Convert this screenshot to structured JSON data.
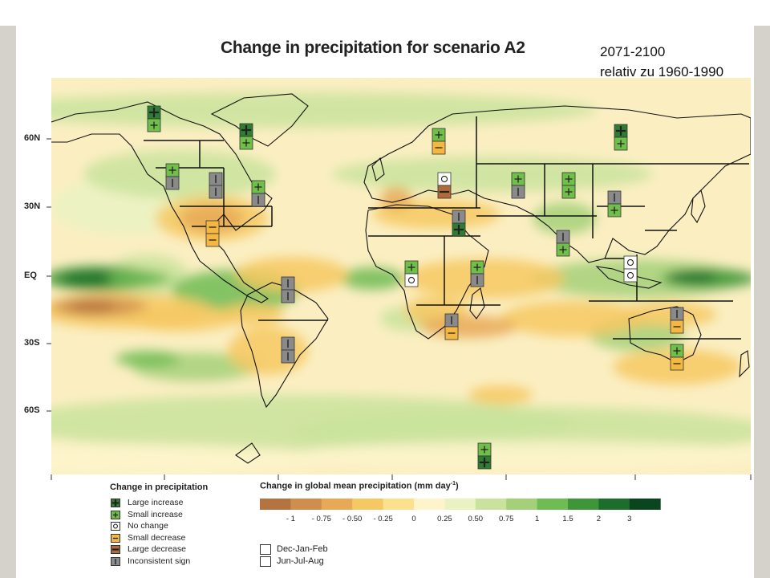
{
  "title": "Change in precipitation for scenario A2",
  "period": {
    "line1": "2071-2100",
    "line2": "relativ zu 1960-1990"
  },
  "latitude_labels": [
    "60N",
    "30N",
    "EQ",
    "30S",
    "60S"
  ],
  "legend_symbols": {
    "title": "Change in precipitation",
    "items": [
      {
        "label": "Large increase",
        "color": "#2f7d32",
        "glyph": "plus-large"
      },
      {
        "label": "Small increase",
        "color": "#6fbf4a",
        "glyph": "plus-small"
      },
      {
        "label": "No change",
        "color": "#ffffff",
        "glyph": "circle"
      },
      {
        "label": "Small decrease",
        "color": "#f3b742",
        "glyph": "minus-small"
      },
      {
        "label": "Large decrease",
        "color": "#b06a3b",
        "glyph": "minus-large"
      },
      {
        "label": "Inconsistent sign",
        "color": "#8a8a8a",
        "glyph": "bar"
      }
    ]
  },
  "colorbar": {
    "title": "Change in global mean precipitation (mm day",
    "title_exp": "-1",
    "title_end": ")",
    "tick_labels": [
      "- 1",
      "- 0.75",
      "- 0.50",
      "- 0.25",
      "0",
      "0.25",
      "0.50",
      "0.75",
      "1",
      "1.5",
      "2",
      "3"
    ],
    "colors": [
      "#b5733f",
      "#d08e4e",
      "#e8a957",
      "#f6c862",
      "#fbe08d",
      "#fdf4cb",
      "#eaf2c2",
      "#c9e39c",
      "#a3d078",
      "#6fbb54",
      "#3e9638",
      "#1c6e2a",
      "#0b4520"
    ]
  },
  "seasons": [
    {
      "label": "Dec-Jan-Feb"
    },
    {
      "label": "Jun-Jul-Aug"
    }
  ],
  "regions": [
    {
      "id": "alaska",
      "djf": "large-increase",
      "jja": "small-increase"
    },
    {
      "id": "greenland",
      "djf": "large-increase",
      "jja": "small-increase"
    },
    {
      "id": "western-north-america",
      "djf": "small-increase",
      "jja": "inconsistent"
    },
    {
      "id": "central-north-america",
      "djf": "inconsistent",
      "jja": "inconsistent"
    },
    {
      "id": "eastern-north-america",
      "djf": "small-increase",
      "jja": "inconsistent"
    },
    {
      "id": "central-america",
      "djf": "small-decrease",
      "jja": "small-decrease"
    },
    {
      "id": "amazonia",
      "djf": "inconsistent",
      "jja": "inconsistent"
    },
    {
      "id": "southern-south-america",
      "djf": "inconsistent",
      "jja": "inconsistent"
    },
    {
      "id": "northern-europe",
      "djf": "small-increase",
      "jja": "small-decrease"
    },
    {
      "id": "mediterranean",
      "djf": "no-change",
      "jja": "large-decrease"
    },
    {
      "id": "sahara",
      "djf": "inconsistent",
      "jja": "large-increase"
    },
    {
      "id": "western-africa",
      "djf": "small-increase",
      "jja": "no-change"
    },
    {
      "id": "eastern-africa",
      "djf": "small-increase",
      "jja": "inconsistent"
    },
    {
      "id": "southern-africa",
      "djf": "inconsistent",
      "jja": "small-decrease"
    },
    {
      "id": "northern-asia",
      "djf": "large-increase",
      "jja": "small-increase"
    },
    {
      "id": "central-asia",
      "djf": "small-increase",
      "jja": "inconsistent"
    },
    {
      "id": "tibetan-plateau",
      "djf": "small-increase",
      "jja": "small-increase"
    },
    {
      "id": "east-asia",
      "djf": "inconsistent",
      "jja": "small-increase"
    },
    {
      "id": "south-asia",
      "djf": "inconsistent",
      "jja": "small-increase"
    },
    {
      "id": "southeast-asia",
      "djf": "no-change",
      "jja": "no-change"
    },
    {
      "id": "northern-australia",
      "djf": "inconsistent",
      "jja": "small-decrease"
    },
    {
      "id": "southern-australia",
      "djf": "small-increase",
      "jja": "small-decrease"
    },
    {
      "id": "antarctica",
      "djf": "small-increase",
      "jja": "large-increase"
    }
  ]
}
